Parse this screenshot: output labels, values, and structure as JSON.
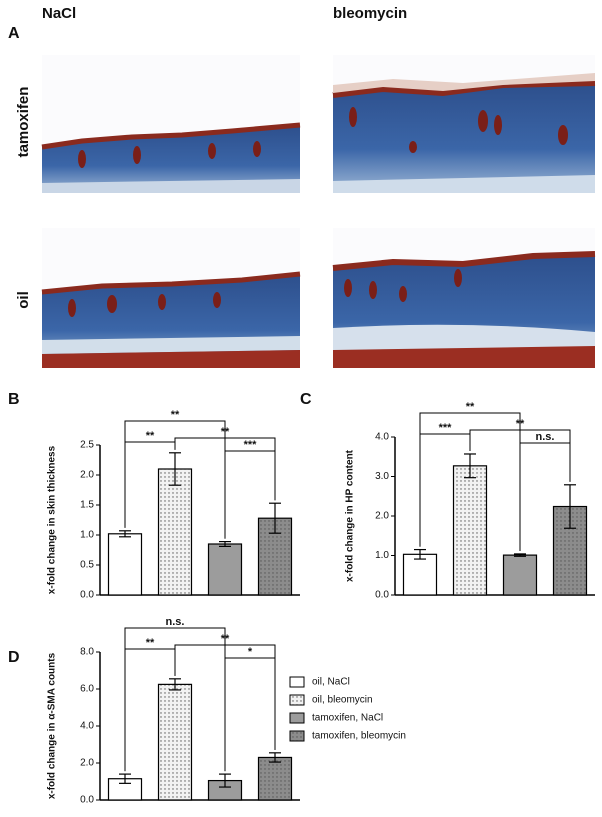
{
  "histology": {
    "panel": "A",
    "columns": [
      "NaCl",
      "bleomycin"
    ],
    "rows": [
      "tamoxifen",
      "oil"
    ]
  },
  "chart_data": [
    {
      "type": "bar",
      "panel": "B",
      "ylabel": "x-fold change in skin thickness",
      "categories": [
        null,
        null,
        null,
        null
      ],
      "values": [
        1.02,
        2.1,
        0.85,
        1.28
      ],
      "errors": [
        0.05,
        0.27,
        0.04,
        0.25
      ],
      "colors": [
        "#ffffff",
        "#f2f2f2",
        "#9c9c9c",
        "#8c8c8c"
      ],
      "dotted": [
        false,
        true,
        false,
        true
      ],
      "ylim": [
        0,
        2.5
      ],
      "yticks": [
        {
          "value": 0,
          "label": "0.0"
        },
        0.5,
        {
          "value": 1,
          "label": "1.0"
        },
        1.5,
        {
          "value": 2,
          "label": "2.0"
        },
        2.5
      ],
      "significance": [
        "**",
        "**",
        "**",
        "***"
      ]
    },
    {
      "type": "bar",
      "panel": "C",
      "ylabel": "x-fold change in HP content",
      "categories": [
        null,
        null,
        null,
        null
      ],
      "values": [
        1.03,
        3.27,
        1.01,
        2.24
      ],
      "errors": [
        0.12,
        0.3,
        0.03,
        0.55
      ],
      "colors": [
        "#ffffff",
        "#f2f2f2",
        "#9c9c9c",
        "#8c8c8c"
      ],
      "dotted": [
        false,
        true,
        false,
        true
      ],
      "ylim": [
        0,
        4
      ],
      "yticks": [
        {
          "value": 0,
          "label": "0.0"
        },
        {
          "value": 1,
          "label": "1.0"
        },
        {
          "value": 2,
          "label": "2.0"
        },
        {
          "value": 3,
          "label": "3.0"
        },
        {
          "value": 4,
          "label": "4.0"
        }
      ],
      "significance": [
        "**",
        "***",
        "**",
        "n.s."
      ]
    },
    {
      "type": "bar",
      "panel": "D",
      "ylabel": "x-fold change in α-SMA counts",
      "categories": [
        null,
        null,
        null,
        null
      ],
      "values": [
        1.15,
        6.25,
        1.05,
        2.3
      ],
      "errors": [
        0.25,
        0.3,
        0.35,
        0.25
      ],
      "colors": [
        "#ffffff",
        "#f2f2f2",
        "#9c9c9c",
        "#8c8c8c"
      ],
      "dotted": [
        false,
        true,
        false,
        true
      ],
      "ylim": [
        0,
        8
      ],
      "yticks": [
        {
          "value": 0,
          "label": "0.0"
        },
        {
          "value": 2,
          "label": "2.0"
        },
        {
          "value": 4,
          "label": "4.0"
        },
        {
          "value": 6,
          "label": "6.0"
        },
        {
          "value": 8,
          "label": "8.0"
        }
      ],
      "significance": [
        "n.s.",
        "**",
        "**",
        "*"
      ]
    }
  ],
  "legend": [
    {
      "label": "oil, NaCl",
      "color": "#ffffff",
      "dotted": false
    },
    {
      "label": "oil, bleomycin",
      "color": "#f2f2f2",
      "dotted": true
    },
    {
      "label": "tamoxifen, NaCl",
      "color": "#9c9c9c",
      "dotted": false
    },
    {
      "label": "tamoxifen, bleomycin",
      "color": "#8c8c8c",
      "dotted": true
    }
  ]
}
